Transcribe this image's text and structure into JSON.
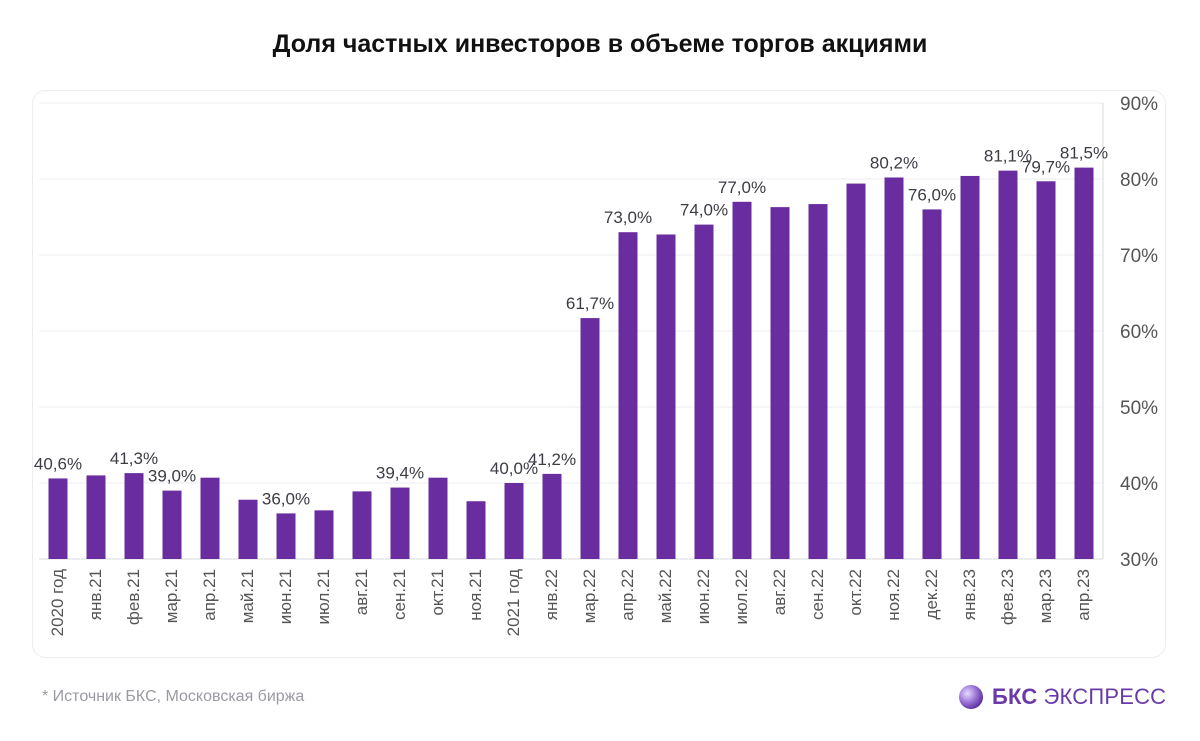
{
  "title": "Доля частных инвесторов в объеме торгов акциями",
  "footnote": "*  Источник БКС, Московская биржа",
  "brand": {
    "bold": "БКС",
    "light": "ЭКСПРЕСС",
    "logo_icon": "sphere-logo-icon"
  },
  "colors": {
    "bar": "#6a2d9f",
    "grid": "#ececf0",
    "axis_text": "#555555",
    "label_text": "#3c3c44"
  },
  "chart_data": {
    "type": "bar",
    "title": "Доля частных инвесторов в объеме торгов акциями",
    "xlabel": "",
    "ylabel": "",
    "ylim": [
      30,
      90
    ],
    "y_ticks": [
      30,
      40,
      50,
      60,
      70,
      80,
      90
    ],
    "y_tick_labels": [
      "30%",
      "40%",
      "50%",
      "60%",
      "70%",
      "80%",
      "90%"
    ],
    "y_axis_position": "right",
    "grid": true,
    "categories": [
      "2020 год",
      "янв.21",
      "фев.21",
      "мар.21",
      "апр.21",
      "май.21",
      "июн.21",
      "июл.21",
      "авг.21",
      "сен.21",
      "окт.21",
      "ноя.21",
      "2021 год",
      "янв.22",
      "мар.22",
      "апр.22",
      "май.22",
      "июн.22",
      "июл.22",
      "авг.22",
      "сен.22",
      "окт.22",
      "ноя.22",
      "дек.22",
      "янв.23",
      "фев.23",
      "мар.23",
      "апр.23"
    ],
    "values": [
      40.6,
      41.0,
      41.3,
      39.0,
      40.7,
      37.8,
      36.0,
      36.4,
      38.9,
      39.4,
      40.7,
      37.6,
      40.0,
      41.2,
      61.7,
      73.0,
      72.7,
      74.0,
      77.0,
      76.3,
      76.7,
      79.4,
      80.2,
      76.0,
      80.4,
      81.1,
      79.7,
      81.5
    ],
    "data_labels": [
      "40,6%",
      "",
      "41,3%",
      "39,0%",
      "",
      "",
      "36,0%",
      "",
      "",
      "39,4%",
      "",
      "",
      "40,0%",
      "41,2%",
      "61,7%",
      "73,0%",
      "",
      "74,0%",
      "77,0%",
      "",
      "",
      "",
      "80,2%",
      "76,0%",
      "",
      "81,1%",
      "79,7%",
      "81,5%"
    ]
  }
}
